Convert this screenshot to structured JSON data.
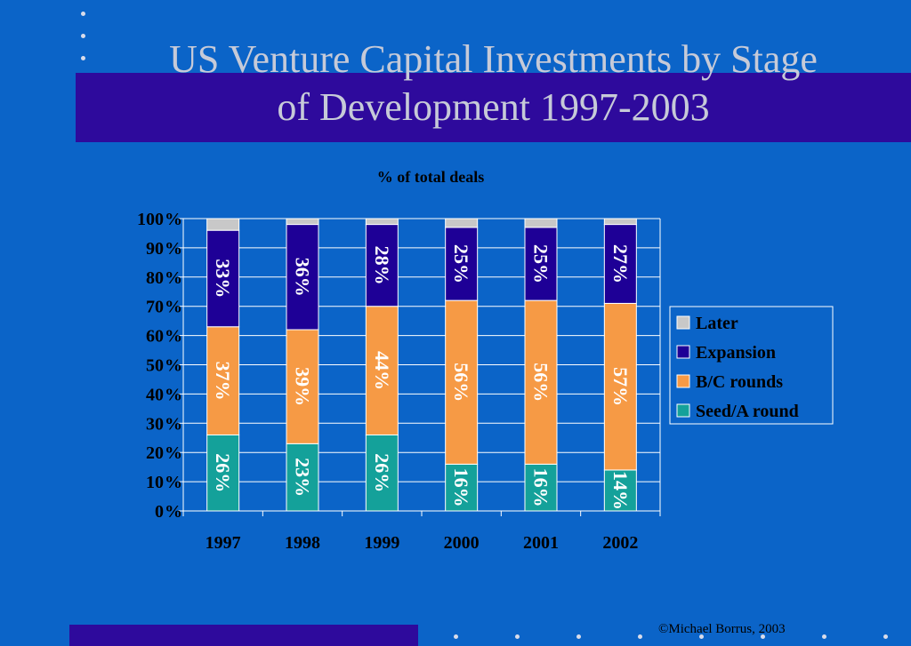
{
  "slide": {
    "title_line1": "US Venture Capital Investments by Stage",
    "title_line2": "of Development 1997-2003",
    "copyright": "©Michael Borrus, 2003"
  },
  "colors": {
    "background": "#0b64c8",
    "band": "#2e0a9c",
    "later": "#c8c8c8",
    "expansion": "#1e0096",
    "bc_rounds": "#f69a45",
    "seed": "#14a19a"
  },
  "chart_data": {
    "type": "bar",
    "stacked": true,
    "title": "% of total deals",
    "categories": [
      "1997",
      "1998",
      "1999",
      "2000",
      "2001",
      "2002"
    ],
    "y_ticks": [
      "0%",
      "10%",
      "20%",
      "30%",
      "40%",
      "50%",
      "60%",
      "70%",
      "80%",
      "90%",
      "100%"
    ],
    "ylim": [
      0,
      100
    ],
    "grid": true,
    "legend_position": "right",
    "series": [
      {
        "name": "Seed/A round",
        "color": "#14a19a",
        "values": [
          26,
          23,
          26,
          16,
          16,
          14
        ],
        "labels": [
          "26%",
          "23%",
          "26%",
          "16%",
          "16%",
          "14%"
        ]
      },
      {
        "name": "B/C rounds",
        "color": "#f69a45",
        "values": [
          37,
          39,
          44,
          56,
          56,
          57
        ],
        "labels": [
          "37%",
          "39%",
          "44%",
          "56%",
          "56%",
          "57%"
        ]
      },
      {
        "name": "Expansion",
        "color": "#1e0096",
        "values": [
          33,
          36,
          28,
          25,
          25,
          27
        ],
        "labels": [
          "33%",
          "36%",
          "28%",
          "25%",
          "25%",
          "27%"
        ]
      },
      {
        "name": "Later",
        "color": "#c8c8c8",
        "values": [
          4,
          2,
          2,
          3,
          3,
          2
        ],
        "labels": [
          "",
          "",
          "",
          "",
          "",
          ""
        ]
      }
    ],
    "legend": [
      "Later",
      "Expansion",
      "B/C rounds",
      "Seed/A round"
    ]
  }
}
